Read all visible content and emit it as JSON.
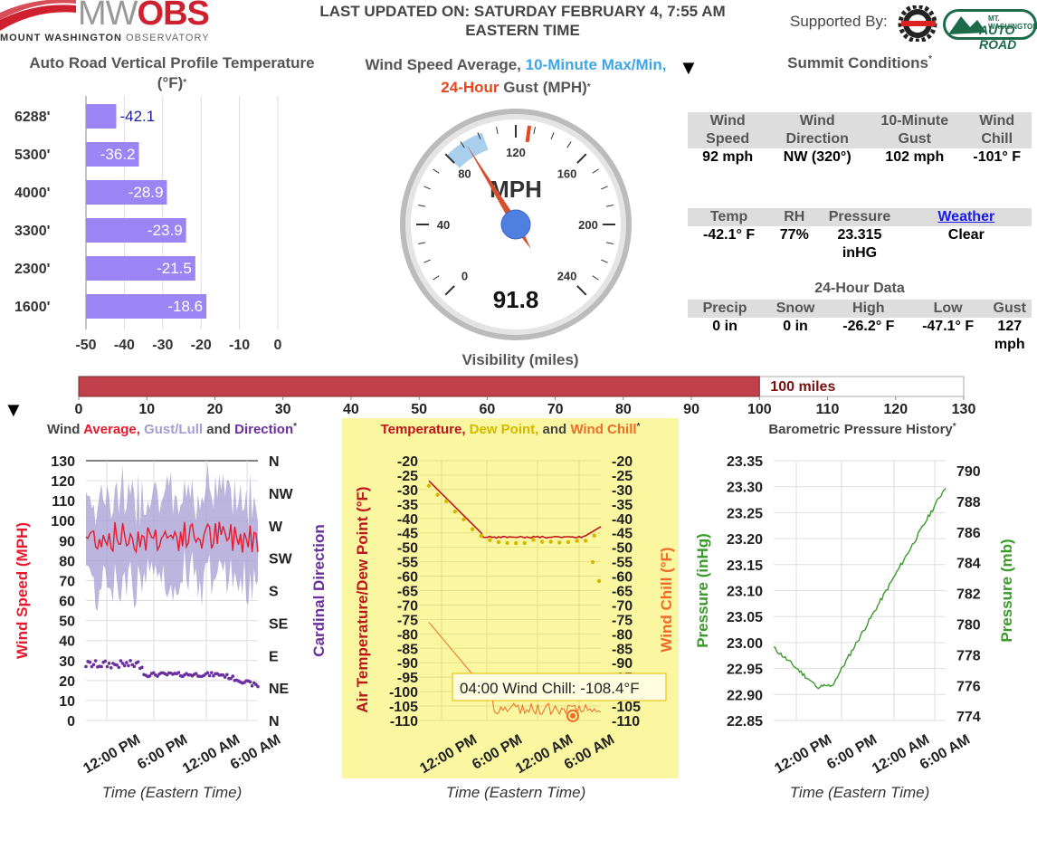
{
  "header": {
    "logo_text": "MWOBS",
    "logo_sub_bold": "MOUNT WASHINGTON",
    "logo_sub_light": "OBSERVATORY",
    "last_updated_line1": "LAST UPDATED ON: SATURDAY FEBRUARY 4, 7:55 AM",
    "last_updated_line2": "EASTERN TIME",
    "supported_by": "Supported By:",
    "sponsor1": "COG RAILWAY",
    "sponsor2_line1": "MT. WASHINGTON",
    "sponsor2_line2": "AUTO ROAD"
  },
  "profile": {
    "title_line1": "Auto Road Vertical Profile Temperature",
    "title_line2": "(°F)",
    "star": "*",
    "bar_color": "#9b85f5",
    "chart_data": {
      "type": "bar",
      "categories": [
        "6288'",
        "5300'",
        "4000'",
        "3300'",
        "2300'",
        "1600'"
      ],
      "values": [
        -42.1,
        -36.2,
        -28.9,
        -23.9,
        -21.5,
        -18.6
      ],
      "labels": [
        "-42.1",
        "-36.2",
        "-28.9",
        "-23.9",
        "-21.5",
        "-18.6"
      ],
      "xlim": [
        -50,
        0
      ],
      "xticks": [
        "-50",
        "-40",
        "-30",
        "-20",
        "-10",
        "0"
      ]
    }
  },
  "gauge": {
    "title_part1": "Wind Speed Average,",
    "title_part2": "10-Minute Max/Min,",
    "title_part3": "24-Hour",
    "title_part4": "Gust (MPH)",
    "star": "*",
    "unit": "MPH",
    "value": "91.8",
    "value_num": 91.8,
    "min10": 80,
    "max10": 102,
    "gust24": 127,
    "ticks": [
      "0",
      "40",
      "80",
      "120",
      "160",
      "200",
      "240"
    ],
    "arrow": "▼"
  },
  "summit": {
    "title": "Summit Conditions",
    "star": "*",
    "row1_headers": [
      "Wind Speed",
      "Wind Direction",
      "10-Minute Gust",
      "Wind Chill"
    ],
    "row1_values": [
      "92 mph",
      "NW (320°)",
      "102 mph",
      "-101° F"
    ],
    "row2_headers": [
      "Temp",
      "RH",
      "Pressure"
    ],
    "row2_link": "Weather",
    "row2_values": [
      "-42.1° F",
      "77%",
      "23.315 inHG",
      "Clear"
    ],
    "h24_title": "24-Hour Data",
    "row3_headers": [
      "Precip",
      "Snow",
      "High",
      "Low",
      "Gust"
    ],
    "row3_values": [
      "0 in",
      "0 in",
      "-26.2° F",
      "-47.1° F",
      "127 mph"
    ]
  },
  "visibility": {
    "title": "Visibility (miles)",
    "value": 100,
    "label": "100 miles",
    "max": 130,
    "ticks": [
      "0",
      "10",
      "20",
      "30",
      "40",
      "50",
      "60",
      "70",
      "80",
      "90",
      "100",
      "110",
      "120",
      "130"
    ],
    "bar_color": "#c0404b",
    "arrow": "▼"
  },
  "wind_chart": {
    "title_wind": "Wind",
    "title_average": "Average,",
    "title_gust": "Gust/Lull",
    "title_and": "and",
    "title_direction": "Direction",
    "star": "*",
    "ylabel": "Wind Speed (MPH)",
    "ylabel2": "Cardinal Direction",
    "yticks": [
      "0",
      "10",
      "20",
      "30",
      "40",
      "50",
      "60",
      "70",
      "80",
      "90",
      "100",
      "110",
      "120",
      "130"
    ],
    "dir_ticks": [
      "N",
      "NE",
      "E",
      "SE",
      "S",
      "SW",
      "W",
      "NW",
      "N"
    ],
    "xticks": [
      "12:00 PM",
      "6:00 PM",
      "12:00 AM",
      "6:00 AM"
    ],
    "xlabel": "Time (Eastern Time)",
    "colors": {
      "average": "#e8192c",
      "gust": "#a59dd4",
      "direction": "#6b2fa0"
    }
  },
  "temp_chart": {
    "title_temperature": "Temperature,",
    "title_dew": "Dew Point,",
    "title_and": "and",
    "title_chill": "Wind Chill",
    "star": "*",
    "ylabel": "Air Temperature/Dew Point (°F)",
    "ylabel2": "Wind Chill (°F)",
    "yticks": [
      "-20",
      "-25",
      "-30",
      "-35",
      "-40",
      "-45",
      "-50",
      "-55",
      "-60",
      "-65",
      "-70",
      "-75",
      "-80",
      "-85",
      "-90",
      "-95",
      "-100",
      "-105",
      "-110"
    ],
    "yticks_right": [
      "-20",
      "-25",
      "-30",
      "-35",
      "-40",
      "-45",
      "-50",
      "-55",
      "-60",
      "-65",
      "-70",
      "-75",
      "-80",
      "-85",
      "-90",
      "-95",
      "-100",
      "-105",
      "-110"
    ],
    "xticks": [
      "12:00 PM",
      "6:00 PM",
      "12:00 AM",
      "6:00 AM"
    ],
    "xlabel": "Time (Eastern Time)",
    "tooltip": "04:00 Wind Chill: -108.4°F",
    "colors": {
      "temperature": "#c0141c",
      "dew": "#d4b800",
      "chill": "#f06a2a",
      "bg": "#faf7a0"
    }
  },
  "pressure_chart": {
    "title": "Barometric Pressure History",
    "star": "*",
    "ylabel": "Pressure (inHg)",
    "ylabel2": "Pressure (mb)",
    "yticks": [
      "23.35",
      "23.30",
      "23.25",
      "23.20",
      "23.15",
      "23.10",
      "23.05",
      "23.00",
      "22.95",
      "22.90",
      "22.85"
    ],
    "yticks_right": [
      "790",
      "788",
      "786",
      "784",
      "782",
      "780",
      "778",
      "776",
      "774"
    ],
    "xticks": [
      "12:00 PM",
      "6:00 PM",
      "12:00 AM",
      "6:00 AM"
    ],
    "xlabel": "Time (Eastern Time)",
    "line_color": "#3a9a2a"
  }
}
